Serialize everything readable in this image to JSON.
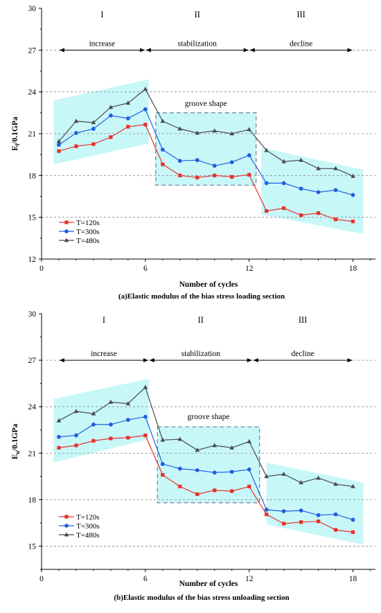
{
  "chart_data": [
    {
      "type": "line",
      "panel": "a",
      "caption": "(a)Elastic modulus of the bias stress loading section",
      "xlabel": "Number of cycles",
      "ylabel_main": "E",
      "ylabel_sub": "l",
      "ylabel_rest": "/0.1GPa",
      "xlim": [
        0,
        19.3
      ],
      "ylim": [
        12,
        30
      ],
      "xticks": [
        0,
        6,
        12,
        18
      ],
      "yticks": [
        12,
        15,
        18,
        21,
        24,
        27,
        30
      ],
      "grid_y": [
        15,
        18,
        21,
        24,
        27
      ],
      "legend_position": "bottom-left",
      "stages": [
        {
          "roman": "I",
          "phase": "increase",
          "x_center": 3.5
        },
        {
          "roman": "II",
          "phase": "stabilization",
          "x_center": 9.5
        },
        {
          "roman": "III",
          "phase": "decline",
          "x_center": 15.2
        }
      ],
      "phase_arrow_y": 27,
      "phase_dividers_x": [
        6,
        12
      ],
      "groove": {
        "label": "groove shape",
        "x0": 6.6,
        "x1": 12.4,
        "y0": 17.3,
        "y1": 22.5,
        "label_y": 23.0
      },
      "bands": [
        [
          [
            0.7,
            18.8
          ],
          [
            0.7,
            23.4
          ],
          [
            6.2,
            24.9
          ],
          [
            6.2,
            20.3
          ]
        ],
        [
          [
            6.6,
            17.3
          ],
          [
            6.6,
            22.5
          ],
          [
            12.4,
            22.5
          ],
          [
            12.4,
            17.3
          ]
        ],
        [
          [
            12.7,
            15.2
          ],
          [
            12.7,
            20.0
          ],
          [
            18.6,
            18.4
          ],
          [
            18.6,
            13.8
          ]
        ]
      ],
      "series": [
        {
          "name": "T=120s",
          "color": "#e8302a",
          "marker": "square",
          "x": [
            1,
            2,
            3,
            4,
            5,
            6,
            7,
            8,
            9,
            10,
            11,
            12,
            13,
            14,
            15,
            16,
            17,
            18
          ],
          "values": [
            19.75,
            20.1,
            20.25,
            20.75,
            21.5,
            21.65,
            18.8,
            18.0,
            17.85,
            18.0,
            17.9,
            18.05,
            15.45,
            15.65,
            15.15,
            15.3,
            14.85,
            14.7
          ]
        },
        {
          "name": "T=300s",
          "color": "#1f5fe0",
          "marker": "circle",
          "x": [
            1,
            2,
            3,
            4,
            5,
            6,
            7,
            8,
            9,
            10,
            11,
            12,
            13,
            14,
            15,
            16,
            17,
            18
          ],
          "values": [
            20.2,
            21.05,
            21.35,
            22.3,
            22.1,
            22.75,
            19.85,
            19.05,
            19.1,
            18.7,
            18.95,
            19.45,
            17.45,
            17.45,
            17.05,
            16.8,
            16.95,
            16.6
          ]
        },
        {
          "name": "T=480s",
          "color": "#4a4a4a",
          "marker": "triangle",
          "x": [
            1,
            2,
            3,
            4,
            5,
            6,
            7,
            8,
            9,
            10,
            11,
            12,
            13,
            14,
            15,
            16,
            17,
            18
          ],
          "values": [
            20.45,
            21.9,
            21.8,
            22.9,
            23.2,
            24.2,
            21.9,
            21.35,
            21.05,
            21.2,
            21.0,
            21.3,
            19.8,
            19.0,
            19.1,
            18.5,
            18.5,
            17.95
          ]
        }
      ]
    },
    {
      "type": "line",
      "panel": "b",
      "caption": "(b)Elastic modulus of the bias stress unloading section",
      "xlabel": "Number of cycles",
      "ylabel_main": "E",
      "ylabel_sub": "u",
      "ylabel_rest": "/0.1GPa",
      "xlim": [
        0,
        19.3
      ],
      "ylim": [
        13.5,
        30
      ],
      "xticks": [
        0,
        6,
        12,
        18
      ],
      "yticks": [
        15,
        18,
        21,
        24,
        27,
        30
      ],
      "grid_y": [
        15,
        18,
        21,
        24,
        27
      ],
      "legend_position": "bottom-left",
      "stages": [
        {
          "roman": "I",
          "phase": "increase",
          "x_center": 3.5
        },
        {
          "roman": "II",
          "phase": "stabilization",
          "x_center": 9.5
        },
        {
          "roman": "III",
          "phase": "decline",
          "x_center": 15.2
        }
      ],
      "phase_arrow_y": 27,
      "phase_dividers_x": [
        6.2,
        12.2
      ],
      "groove": {
        "label": "groove shape",
        "x0": 6.7,
        "x1": 12.6,
        "y0": 17.8,
        "y1": 22.7,
        "label_y": 23.2
      },
      "bands": [
        [
          [
            0.7,
            20.4
          ],
          [
            0.7,
            24.5
          ],
          [
            6.2,
            25.8
          ],
          [
            6.2,
            21.9
          ]
        ],
        [
          [
            6.7,
            17.8
          ],
          [
            6.7,
            22.7
          ],
          [
            12.6,
            22.7
          ],
          [
            12.6,
            17.8
          ]
        ],
        [
          [
            13.0,
            16.4
          ],
          [
            13.0,
            20.4
          ],
          [
            18.6,
            19.1
          ],
          [
            18.6,
            15.1
          ]
        ]
      ],
      "series": [
        {
          "name": "T=120s",
          "color": "#e8302a",
          "marker": "square",
          "x": [
            1,
            2,
            3,
            4,
            5,
            6,
            7,
            8,
            9,
            10,
            11,
            12,
            13,
            14,
            15,
            16,
            17,
            18
          ],
          "values": [
            21.35,
            21.5,
            21.8,
            21.95,
            22.0,
            22.15,
            19.6,
            18.85,
            18.35,
            18.6,
            18.55,
            18.85,
            17.05,
            16.45,
            16.55,
            16.6,
            16.05,
            15.9
          ]
        },
        {
          "name": "T=300s",
          "color": "#1f5fe0",
          "marker": "circle",
          "x": [
            1,
            2,
            3,
            4,
            5,
            6,
            7,
            8,
            9,
            10,
            11,
            12,
            13,
            14,
            15,
            16,
            17,
            18
          ],
          "values": [
            22.05,
            22.15,
            22.85,
            22.85,
            23.15,
            23.35,
            20.3,
            20.0,
            19.9,
            19.75,
            19.8,
            19.95,
            17.35,
            17.25,
            17.3,
            17.0,
            17.05,
            16.7
          ]
        },
        {
          "name": "T=480s",
          "color": "#4a4a4a",
          "marker": "triangle",
          "x": [
            1,
            2,
            3,
            4,
            5,
            6,
            7,
            8,
            9,
            10,
            11,
            12,
            13,
            14,
            15,
            16,
            17,
            18
          ],
          "values": [
            23.1,
            23.7,
            23.55,
            24.3,
            24.2,
            25.25,
            21.85,
            21.9,
            21.2,
            21.5,
            21.35,
            21.75,
            19.5,
            19.65,
            19.1,
            19.4,
            19.0,
            18.85
          ]
        }
      ]
    }
  ]
}
